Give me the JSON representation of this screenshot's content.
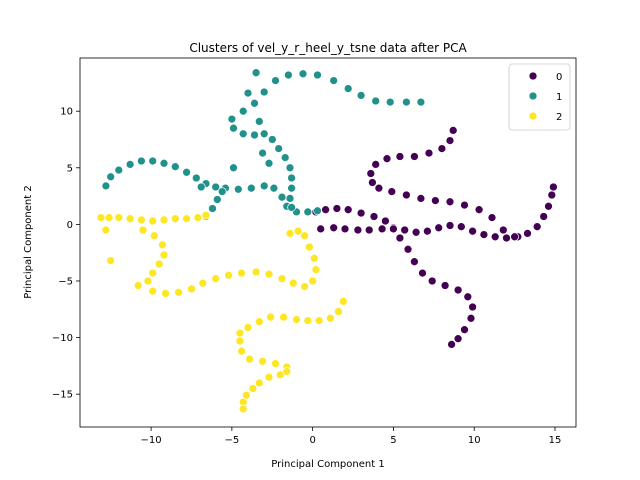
{
  "chart_data": {
    "type": "scatter",
    "title": "Clusters of vel_y_r_heel_y_tsne data after PCA",
    "xlabel": "Principal Component 1",
    "ylabel": "Principal Component 2",
    "xlim": [
      -14.4,
      16.3
    ],
    "ylim": [
      -17.9,
      14.7
    ],
    "xticks": [
      -10,
      -5,
      0,
      5,
      10,
      15
    ],
    "yticks": [
      -15,
      -10,
      -5,
      0,
      5,
      10
    ],
    "grid": false,
    "legend_position": "top-right",
    "series": [
      {
        "name": "0",
        "color": "#440154",
        "points": [
          [
            0.2,
            1.1
          ],
          [
            0.8,
            1.3
          ],
          [
            1.5,
            1.4
          ],
          [
            2.2,
            1.3
          ],
          [
            3.0,
            1.0
          ],
          [
            3.8,
            0.7
          ],
          [
            4.5,
            0.3
          ],
          [
            5.0,
            -0.3
          ],
          [
            5.4,
            -1.2
          ],
          [
            5.9,
            -2.2
          ],
          [
            6.3,
            -3.3
          ],
          [
            6.8,
            -4.3
          ],
          [
            7.4,
            -5.0
          ],
          [
            8.2,
            -5.4
          ],
          [
            9.0,
            -5.8
          ],
          [
            9.6,
            -6.4
          ],
          [
            9.9,
            -7.3
          ],
          [
            9.8,
            -8.3
          ],
          [
            9.4,
            -9.3
          ],
          [
            9.0,
            -10.1
          ],
          [
            8.6,
            -10.6
          ],
          [
            0.5,
            -0.4
          ],
          [
            1.3,
            -0.3
          ],
          [
            2.0,
            -0.4
          ],
          [
            2.8,
            -0.5
          ],
          [
            3.5,
            -0.5
          ],
          [
            4.3,
            -0.4
          ],
          [
            5.0,
            -0.4
          ],
          [
            5.7,
            -0.5
          ],
          [
            6.4,
            -0.7
          ],
          [
            7.1,
            -0.6
          ],
          [
            7.8,
            -0.3
          ],
          [
            8.5,
            -0.1
          ],
          [
            9.2,
            -0.2
          ],
          [
            9.9,
            -0.6
          ],
          [
            10.6,
            -0.9
          ],
          [
            11.3,
            -1.1
          ],
          [
            12.0,
            -1.2
          ],
          [
            12.7,
            -1.1
          ],
          [
            13.3,
            -0.8
          ],
          [
            13.9,
            -0.2
          ],
          [
            14.3,
            0.7
          ],
          [
            14.6,
            1.6
          ],
          [
            14.8,
            2.6
          ],
          [
            14.9,
            3.3
          ],
          [
            8.7,
            8.3
          ],
          [
            8.5,
            7.4
          ],
          [
            8.0,
            6.7
          ],
          [
            7.2,
            6.3
          ],
          [
            6.3,
            6.0
          ],
          [
            5.4,
            6.0
          ],
          [
            4.6,
            5.8
          ],
          [
            3.9,
            5.3
          ],
          [
            3.6,
            4.5
          ],
          [
            3.7,
            3.7
          ],
          [
            4.1,
            3.2
          ],
          [
            4.9,
            2.9
          ],
          [
            5.8,
            2.6
          ],
          [
            6.7,
            2.3
          ],
          [
            7.6,
            2.1
          ],
          [
            8.5,
            2.0
          ],
          [
            9.4,
            1.7
          ],
          [
            10.3,
            1.3
          ],
          [
            11.1,
            0.6
          ],
          [
            11.8,
            -0.5
          ],
          [
            12.5,
            -1.1
          ]
        ]
      },
      {
        "name": "1",
        "color": "#21918c",
        "points": [
          [
            -12.8,
            3.4
          ],
          [
            -12.5,
            4.2
          ],
          [
            -12.0,
            4.8
          ],
          [
            -11.3,
            5.3
          ],
          [
            -10.6,
            5.6
          ],
          [
            -9.9,
            5.6
          ],
          [
            -9.2,
            5.4
          ],
          [
            -8.5,
            5.1
          ],
          [
            -7.8,
            4.6
          ],
          [
            -7.2,
            4.1
          ],
          [
            -6.6,
            3.6
          ],
          [
            -6.0,
            3.3
          ],
          [
            -5.4,
            3.2
          ],
          [
            -4.6,
            3.1
          ],
          [
            -3.8,
            3.2
          ],
          [
            -3.0,
            3.4
          ],
          [
            -2.4,
            3.2
          ],
          [
            -1.9,
            2.4
          ],
          [
            -1.6,
            1.6
          ],
          [
            -1.0,
            1.1
          ],
          [
            -0.3,
            1.1
          ],
          [
            0.3,
            1.2
          ],
          [
            -6.6,
            0.7
          ],
          [
            -6.2,
            1.4
          ],
          [
            -5.9,
            2.2
          ],
          [
            -5.6,
            2.9
          ],
          [
            -4.9,
            8.5
          ],
          [
            -4.3,
            8.0
          ],
          [
            -3.6,
            7.9
          ],
          [
            -3.0,
            8.0
          ],
          [
            -2.5,
            7.5
          ],
          [
            -2.1,
            6.7
          ],
          [
            -1.7,
            5.9
          ],
          [
            -1.4,
            5.0
          ],
          [
            -1.3,
            4.1
          ],
          [
            -1.3,
            3.2
          ],
          [
            -1.4,
            2.3
          ],
          [
            -1.3,
            1.5
          ],
          [
            -5.0,
            9.3
          ],
          [
            -4.3,
            10.0
          ],
          [
            -3.6,
            10.7
          ],
          [
            -3.0,
            11.7
          ],
          [
            -2.3,
            12.7
          ],
          [
            -1.5,
            13.2
          ],
          [
            -0.6,
            13.3
          ],
          [
            0.3,
            13.2
          ],
          [
            1.3,
            12.7
          ],
          [
            2.2,
            12.0
          ],
          [
            3.0,
            11.4
          ],
          [
            3.9,
            10.9
          ],
          [
            4.8,
            10.8
          ],
          [
            5.8,
            10.8
          ],
          [
            6.7,
            10.8
          ],
          [
            -3.5,
            13.4
          ],
          [
            -3.3,
            9.1
          ],
          [
            -3.1,
            6.3
          ],
          [
            -4.9,
            5.0
          ],
          [
            -6.9,
            3.3
          ],
          [
            -2.7,
            5.4
          ],
          [
            -4.0,
            11.6
          ]
        ]
      },
      {
        "name": "2",
        "color": "#fde725",
        "points": [
          [
            -13.1,
            0.6
          ],
          [
            -12.6,
            0.6
          ],
          [
            -12.0,
            0.6
          ],
          [
            -11.3,
            0.5
          ],
          [
            -10.6,
            0.4
          ],
          [
            -9.9,
            0.3
          ],
          [
            -9.2,
            0.4
          ],
          [
            -8.5,
            0.5
          ],
          [
            -7.8,
            0.5
          ],
          [
            -7.1,
            0.6
          ],
          [
            -6.6,
            0.8
          ],
          [
            -12.8,
            -0.5
          ],
          [
            -12.5,
            -3.2
          ],
          [
            -10.5,
            -0.5
          ],
          [
            -9.8,
            -1.0
          ],
          [
            -9.3,
            -1.8
          ],
          [
            -9.2,
            -2.7
          ],
          [
            -9.5,
            -3.5
          ],
          [
            -9.9,
            -4.3
          ],
          [
            -10.2,
            -5.0
          ],
          [
            -10.8,
            -5.4
          ],
          [
            -9.9,
            -5.9
          ],
          [
            -9.1,
            -6.1
          ],
          [
            -8.3,
            -6.0
          ],
          [
            -7.5,
            -5.7
          ],
          [
            -6.8,
            -5.2
          ],
          [
            -6.0,
            -4.8
          ],
          [
            -5.2,
            -4.5
          ],
          [
            -4.4,
            -4.3
          ],
          [
            -3.5,
            -4.2
          ],
          [
            -2.7,
            -4.4
          ],
          [
            -1.9,
            -4.8
          ],
          [
            -1.2,
            -5.2
          ],
          [
            -0.5,
            -5.5
          ],
          [
            0.0,
            -5.0
          ],
          [
            0.2,
            -4.0
          ],
          [
            0.1,
            -3.0
          ],
          [
            -0.2,
            -2.0
          ],
          [
            -0.5,
            -1.0
          ],
          [
            -0.9,
            -0.6
          ],
          [
            -1.4,
            -0.8
          ],
          [
            -4.5,
            -9.6
          ],
          [
            -4.0,
            -9.1
          ],
          [
            -3.3,
            -8.6
          ],
          [
            -2.6,
            -8.2
          ],
          [
            -1.8,
            -8.2
          ],
          [
            -1.0,
            -8.4
          ],
          [
            -0.3,
            -8.5
          ],
          [
            0.4,
            -8.5
          ],
          [
            1.1,
            -8.3
          ],
          [
            1.6,
            -7.7
          ],
          [
            1.9,
            -6.8
          ],
          [
            -4.5,
            -10.3
          ],
          [
            -4.4,
            -11.2
          ],
          [
            -3.9,
            -11.9
          ],
          [
            -3.1,
            -12.1
          ],
          [
            -2.3,
            -12.3
          ],
          [
            -1.6,
            -12.6
          ],
          [
            -1.6,
            -13.0
          ],
          [
            -2.0,
            -13.3
          ],
          [
            -2.7,
            -13.5
          ],
          [
            -3.3,
            -14.0
          ],
          [
            -3.7,
            -14.5
          ],
          [
            -4.1,
            -15.1
          ],
          [
            -4.3,
            -15.7
          ],
          [
            -4.3,
            -16.3
          ]
        ]
      }
    ]
  }
}
